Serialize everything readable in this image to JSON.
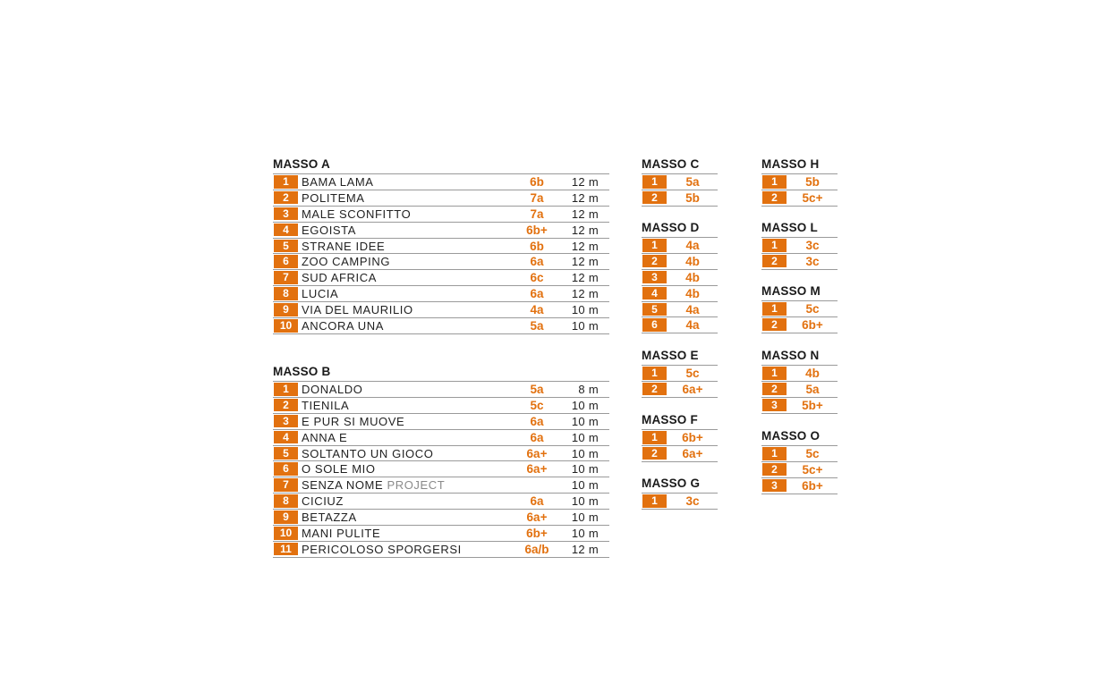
{
  "accent_color": "#e2710f",
  "masso_a": {
    "title": "MASSO A",
    "routes": [
      {
        "n": "1",
        "name": "BAMA LAMA",
        "grade": "6b",
        "len": "12 m"
      },
      {
        "n": "2",
        "name": "POLITEMA",
        "grade": "7a",
        "len": "12 m"
      },
      {
        "n": "3",
        "name": "MALE SCONFITTO",
        "grade": "7a",
        "len": "12 m"
      },
      {
        "n": "4",
        "name": "EGOISTA",
        "grade": "6b+",
        "len": "12 m"
      },
      {
        "n": "5",
        "name": "STRANE IDEE",
        "grade": "6b",
        "len": "12 m"
      },
      {
        "n": "6",
        "name": "ZOO CAMPING",
        "grade": "6a",
        "len": "12 m"
      },
      {
        "n": "7",
        "name": "SUD AFRICA",
        "grade": "6c",
        "len": "12 m"
      },
      {
        "n": "8",
        "name": "LUCIA",
        "grade": "6a",
        "len": "12 m"
      },
      {
        "n": "9",
        "name": "VIA DEL MAURILIO",
        "grade": "4a",
        "len": "10 m"
      },
      {
        "n": "10",
        "name": "ANCORA UNA",
        "grade": "5a",
        "len": "10 m"
      }
    ]
  },
  "masso_b": {
    "title": "MASSO B",
    "routes": [
      {
        "n": "1",
        "name": "DONALDO",
        "grade": "5a",
        "len": "8 m"
      },
      {
        "n": "2",
        "name": "TIENILA",
        "grade": "5c",
        "len": "10 m"
      },
      {
        "n": "3",
        "name": "E PUR SI MUOVE",
        "grade": "6a",
        "len": "10 m"
      },
      {
        "n": "4",
        "name": "ANNA E",
        "grade": "6a",
        "len": "10 m"
      },
      {
        "n": "5",
        "name": "SOLTANTO UN GIOCO",
        "grade": "6a+",
        "len": "10 m"
      },
      {
        "n": "6",
        "name": "O SOLE MIO",
        "grade": "6a+",
        "len": "10 m"
      },
      {
        "n": "7",
        "name": "SENZA NOME",
        "name_suffix": "PROJECT",
        "grade": "",
        "len": "10 m"
      },
      {
        "n": "8",
        "name": "CICIUZ",
        "grade": "6a",
        "len": "10 m"
      },
      {
        "n": "9",
        "name": "BETAZZA",
        "grade": "6a+",
        "len": "10 m"
      },
      {
        "n": "10",
        "name": "MANI PULITE",
        "grade": "6b+",
        "len": "10 m"
      },
      {
        "n": "11",
        "name": "PERICOLOSO SPORGERSI",
        "grade": "6a/b",
        "len": "12 m"
      }
    ]
  },
  "small_blocks": [
    {
      "title": "MASSO C",
      "routes": [
        {
          "n": "1",
          "grade": "5a"
        },
        {
          "n": "2",
          "grade": "5b"
        }
      ]
    },
    {
      "title": "MASSO D",
      "routes": [
        {
          "n": "1",
          "grade": "4a"
        },
        {
          "n": "2",
          "grade": "4b"
        },
        {
          "n": "3",
          "grade": "4b"
        },
        {
          "n": "4",
          "grade": "4b"
        },
        {
          "n": "5",
          "grade": "4a"
        },
        {
          "n": "6",
          "grade": "4a"
        }
      ]
    },
    {
      "title": "MASSO E",
      "routes": [
        {
          "n": "1",
          "grade": "5c"
        },
        {
          "n": "2",
          "grade": "6a+"
        }
      ]
    },
    {
      "title": "MASSO F",
      "routes": [
        {
          "n": "1",
          "grade": "6b+"
        },
        {
          "n": "2",
          "grade": "6a+"
        }
      ]
    },
    {
      "title": "MASSO G",
      "routes": [
        {
          "n": "1",
          "grade": "3c"
        }
      ]
    },
    {
      "title": "MASSO H",
      "routes": [
        {
          "n": "1",
          "grade": "5b"
        },
        {
          "n": "2",
          "grade": "5c+"
        }
      ]
    },
    {
      "title": "MASSO L",
      "routes": [
        {
          "n": "1",
          "grade": "3c"
        },
        {
          "n": "2",
          "grade": "3c"
        }
      ]
    },
    {
      "title": "MASSO M",
      "routes": [
        {
          "n": "1",
          "grade": "5c"
        },
        {
          "n": "2",
          "grade": "6b+"
        }
      ]
    },
    {
      "title": "MASSO N",
      "routes": [
        {
          "n": "1",
          "grade": "4b"
        },
        {
          "n": "2",
          "grade": "5a"
        },
        {
          "n": "3",
          "grade": "5b+"
        }
      ]
    },
    {
      "title": "MASSO O",
      "routes": [
        {
          "n": "1",
          "grade": "5c"
        },
        {
          "n": "2",
          "grade": "5c+"
        },
        {
          "n": "3",
          "grade": "6b+"
        }
      ]
    }
  ]
}
